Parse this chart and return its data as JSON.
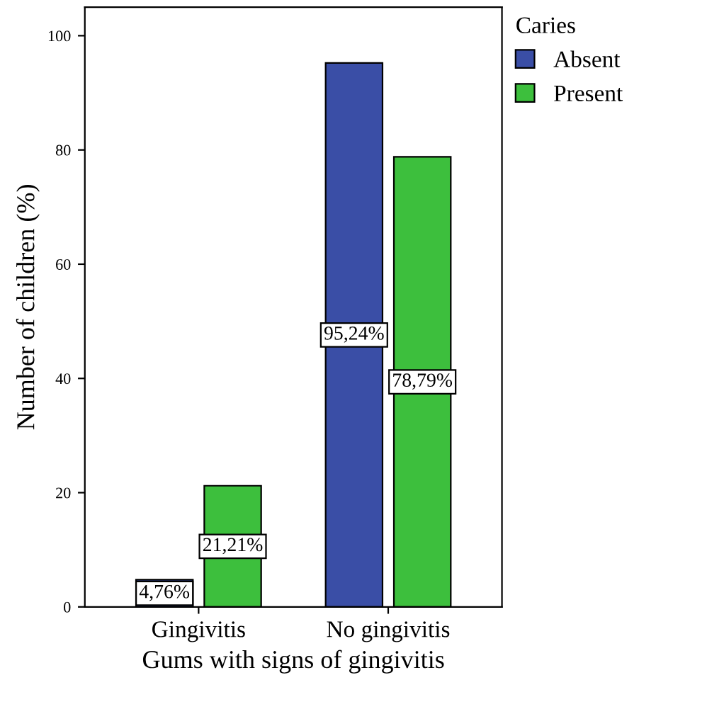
{
  "chart_data": {
    "type": "bar",
    "xlabel": "Gums with signs of gingivitis",
    "ylabel": "Number of children (%)",
    "legend_title": "Caries",
    "categories": [
      "Gingivitis",
      "No gingivitis"
    ],
    "series": [
      {
        "name": "Absent",
        "color": "#3a4ea6",
        "values": [
          4.76,
          95.24
        ],
        "value_labels": [
          "4,76%",
          "95,24%"
        ]
      },
      {
        "name": "Present",
        "color": "#3dbf3d",
        "values": [
          21.21,
          78.79
        ],
        "value_labels": [
          "21,21%",
          "78,79%"
        ]
      }
    ],
    "ylim": [
      0,
      105
    ],
    "yticks": [
      0,
      20,
      40,
      60,
      80,
      100
    ],
    "grid": false,
    "legend": "top right"
  }
}
